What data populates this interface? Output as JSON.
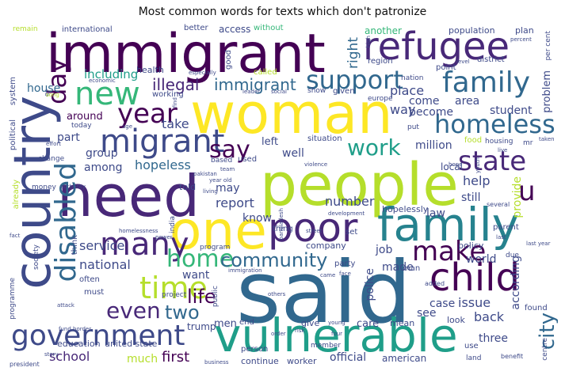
{
  "title": "Most common words for texts which don't patronize",
  "palette": {
    "dark_purple": "#440154",
    "purple": "#482878",
    "indigo": "#3e4a89",
    "blue": "#31688e",
    "teal": "#26828e",
    "green_teal": "#1f9e89",
    "green": "#35b779",
    "lime": "#6ece58",
    "yellow_green": "#b5de2b",
    "yellow": "#fde725"
  },
  "words": {
    "said": "said",
    "woman": "woman",
    "people": "people",
    "need": "need",
    "country": "country",
    "immigrant": "immigrant",
    "vulnerable": "vulnerable",
    "one": "one",
    "family": "family",
    "refugee": "refugee",
    "poor": "poor",
    "child": "child",
    "government": "government",
    "disabled": "disabled",
    "homeless": "homeless",
    "migrant": "migrant",
    "many": "many",
    "new": "new",
    "time": "time",
    "support": "support",
    "family_small": "family",
    "year": "year",
    "day": "day",
    "make": "make",
    "state": "state",
    "home": "home",
    "community": "community",
    "say": "say",
    "work": "work",
    "illegal": "illegal",
    "immigrant_small": "immigrant",
    "even": "even",
    "u": "u",
    "city": "city",
    "two": "two",
    "life": "life",
    "school": "school",
    "much": "much",
    "first": "first",
    "hopeless": "hopeless",
    "including": "including",
    "house": "house",
    "right": "right",
    "another": "another",
    "population": "population",
    "plan": "plan",
    "international": "international",
    "access": "access",
    "better": "better",
    "without": "without",
    "remain": "remain",
    "good": "good",
    "per_cent": "per cent",
    "problem": "problem",
    "district": "district",
    "region": "region",
    "point": "point",
    "level": "level",
    "nation": "nation",
    "health": "health",
    "economic": "economic",
    "especially": "especially",
    "called": "called",
    "leader": "leader",
    "social": "social",
    "show": "show",
    "given": "given",
    "europe": "europe",
    "go": "go",
    "working": "working",
    "song": "song",
    "part": "part",
    "group": "group",
    "among": "among",
    "take": "take",
    "around": "around",
    "today": "today",
    "age": "age",
    "place": "place",
    "way": "way",
    "come": "come",
    "area": "area",
    "become": "become",
    "student": "student",
    "million": "million",
    "left": "left",
    "well": "well",
    "situation": "situation",
    "put": "put",
    "food": "food",
    "housing": "housing",
    "mr": "mr",
    "taken": "taken",
    "live": "live",
    "hope": "hope",
    "based": "based",
    "used": "used",
    "team": "team",
    "trump": "trump",
    "told": "told",
    "may": "may",
    "report": "report",
    "know": "know",
    "number": "number",
    "still": "still",
    "help": "help",
    "law": "law",
    "provide": "provide",
    "local": "local",
    "hopelessly": "hopelessly",
    "thing": "thing",
    "set": "set",
    "parent": "parent",
    "job": "job",
    "service": "service",
    "national": "national",
    "want": "want",
    "made": "made",
    "police": "police",
    "world": "world",
    "according": "according",
    "policy": "policy",
    "company": "company",
    "party": "party",
    "man": "man",
    "due": "due",
    "case": "case",
    "issue": "issue",
    "back": "back",
    "found": "found",
    "see": "see",
    "care": "care",
    "mean": "mean",
    "look": "look",
    "three": "three",
    "official": "official",
    "american": "american",
    "use": "use",
    "land": "land",
    "benefit": "benefit",
    "centre": "centre",
    "men": "men",
    "end": "end",
    "give": "give",
    "continue": "continue",
    "worker": "worker",
    "person": "person",
    "business": "business",
    "education": "education",
    "united_state": "united state",
    "story": "story",
    "president": "president",
    "programme": "programme",
    "fund": "fund",
    "border": "border",
    "attack": "attack",
    "project": "project",
    "often": "often",
    "must": "must",
    "public": "public",
    "program": "program",
    "member": "member",
    "others": "others",
    "came": "came",
    "face": "face",
    "order": "order",
    "young": "young",
    "four": "four",
    "immigration": "immigration",
    "street": "street",
    "power": "power",
    "homelessness": "homelessness",
    "fact": "fact",
    "society": "society",
    "think": "think",
    "already": "already",
    "money": "money",
    "change": "change",
    "political": "political",
    "system": "system",
    "effort": "effort",
    "authority": "authority",
    "india": "india",
    "year_old": "year old",
    "pakistan": "pakistan",
    "living": "living",
    "bangladesh": "bangladesh",
    "development": "development",
    "violence": "violence",
    "several": "several",
    "youth": "youth",
    "last": "last",
    "added": "added",
    "find": "find",
    "risk": "risk",
    "high": "high",
    "percent": "percent",
    "last_year": "last year"
  }
}
